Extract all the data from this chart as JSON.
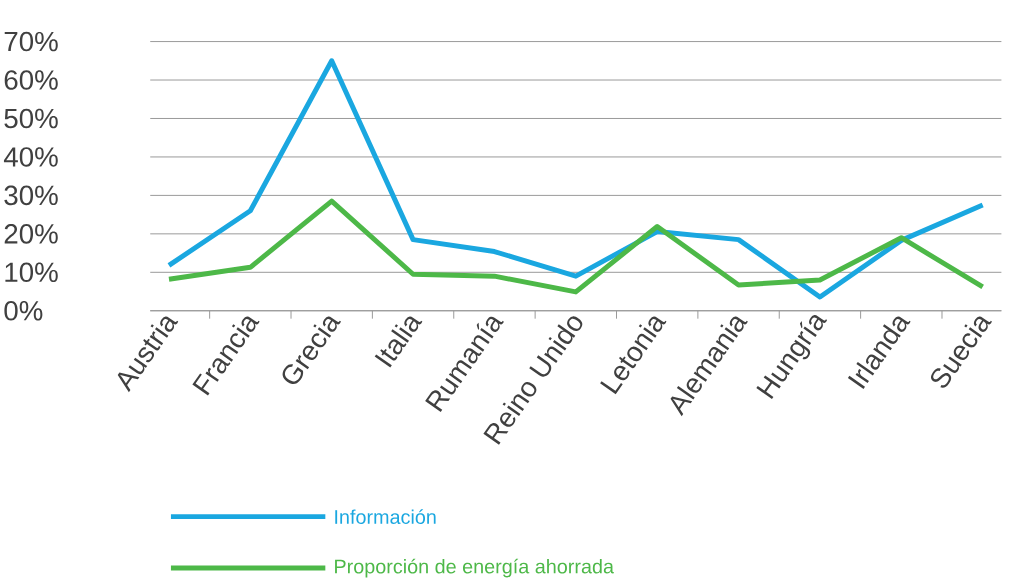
{
  "chart_data": {
    "type": "line",
    "categories": [
      "Austria",
      "Francia",
      "Grecia",
      "Italia",
      "Rumanía",
      "Reino Unido",
      "Letonia",
      "Alemania",
      "Hungría",
      "Irlanda",
      "Suecia"
    ],
    "series": [
      {
        "name": "Información",
        "color": "#1aa7e0",
        "values": [
          11.8,
          26,
          65,
          18.5,
          15.4,
          9,
          20.6,
          18.5,
          3.6,
          18.3,
          27.5
        ]
      },
      {
        "name": "Proporción de energía ahorrada",
        "color": "#4db848",
        "values": [
          8.2,
          11.3,
          28.5,
          9.5,
          9,
          4.9,
          21.9,
          6.7,
          8,
          19,
          6.2
        ]
      }
    ],
    "ylim": [
      0,
      70
    ],
    "yticks": [
      {
        "value": 0,
        "label": "0%"
      },
      {
        "value": 10,
        "label": "10%"
      },
      {
        "value": 20,
        "label": "20%"
      },
      {
        "value": 30,
        "label": "30%"
      },
      {
        "value": 40,
        "label": "40%"
      },
      {
        "value": 50,
        "label": "50%"
      },
      {
        "value": 60,
        "label": "60%"
      },
      {
        "value": 70,
        "label": "70%"
      }
    ],
    "grid": "y",
    "legend": "bottom",
    "marker": "none",
    "line_style": "solid"
  }
}
